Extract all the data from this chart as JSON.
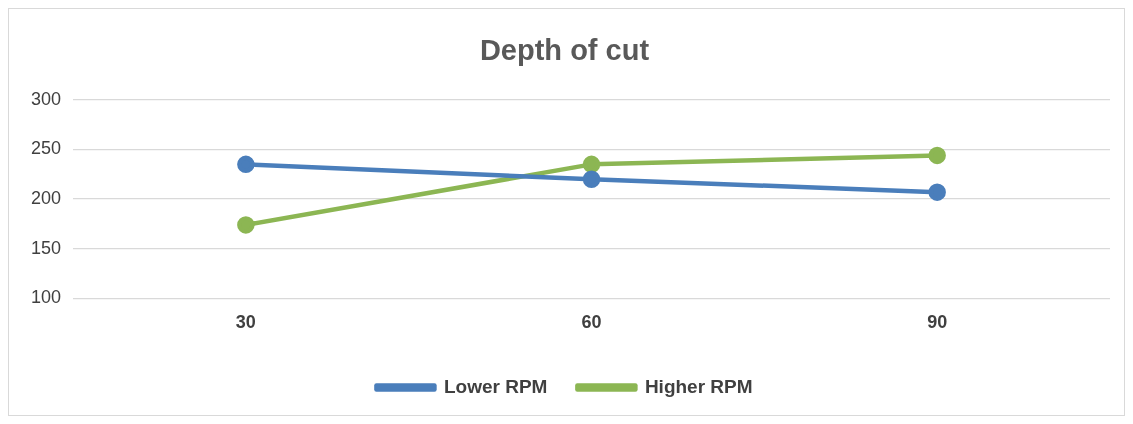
{
  "chart_data": {
    "type": "line",
    "title": "Depth of cut",
    "categories": [
      "30",
      "60",
      "90"
    ],
    "series": [
      {
        "name": "Lower RPM",
        "color": "#4a7ebb",
        "values": [
          235,
          220,
          207
        ]
      },
      {
        "name": "Higher RPM",
        "color": "#8cb653",
        "values": [
          174,
          235,
          244
        ]
      }
    ],
    "ylim": [
      100,
      300
    ],
    "yticks": [
      100,
      150,
      200,
      250,
      300
    ],
    "grid": "y",
    "legend": "bottom",
    "marker": "circle",
    "line_style": "solid"
  }
}
